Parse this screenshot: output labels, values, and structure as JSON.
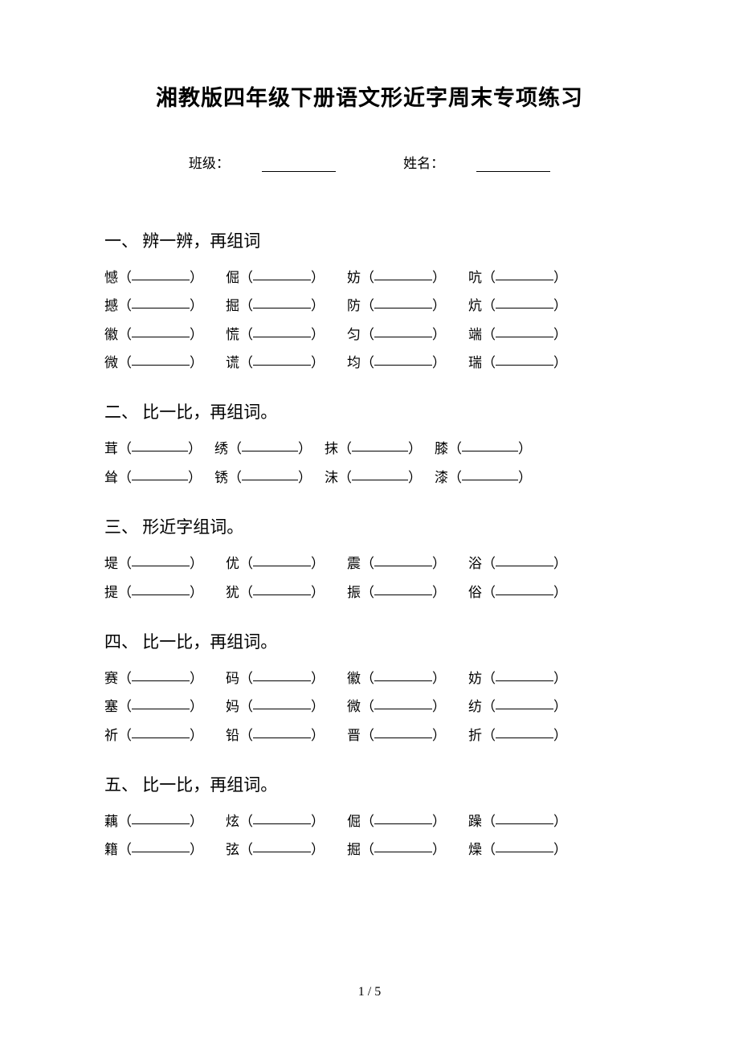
{
  "title": "湘教版四年级下册语文形近字周末专项练习",
  "headerInfo": {
    "classLabel": "班级：",
    "nameLabel": "姓名："
  },
  "sections": [
    {
      "title": "一、 辨一辨，再组词",
      "type": "4col",
      "rows": [
        [
          "憾",
          "倔",
          "妨",
          "吭"
        ],
        [
          "撼",
          "掘",
          "防",
          "炕"
        ],
        [
          "徽",
          "慌",
          "匀",
          "端"
        ],
        [
          "微",
          "谎",
          "均",
          "瑞"
        ]
      ]
    },
    {
      "title": "二、 比一比，再组词。",
      "type": "4col-tight",
      "rows": [
        [
          "茸",
          "绣",
          "抹",
          "膝"
        ],
        [
          "耸",
          "锈",
          "沫",
          "漆"
        ]
      ]
    },
    {
      "title": "三、 形近字组词。",
      "type": "4col",
      "rows": [
        [
          "堤",
          "优",
          "震",
          "浴"
        ],
        [
          "提",
          "犹",
          "振",
          "俗"
        ]
      ]
    },
    {
      "title": "四、 比一比，再组词。",
      "type": "4col",
      "rows": [
        [
          "赛",
          "码",
          "徽",
          "妨"
        ],
        [
          "塞",
          "妈",
          "微",
          "纺"
        ],
        [
          "祈",
          "铅",
          "晋",
          "折"
        ]
      ]
    },
    {
      "title": "五、 比一比，再组词。",
      "type": "4col",
      "rows": [
        [
          "藕",
          "炫",
          "倔",
          "躁"
        ],
        [
          "籍",
          "弦",
          "掘",
          "燥"
        ]
      ]
    }
  ],
  "pageNumber": "1 / 5",
  "colors": {
    "background": "#ffffff",
    "text": "#000000",
    "underline": "#000000"
  },
  "typography": {
    "title_fontsize": 27,
    "section_title_fontsize": 21,
    "body_fontsize": 17,
    "line_height": 2.08
  }
}
